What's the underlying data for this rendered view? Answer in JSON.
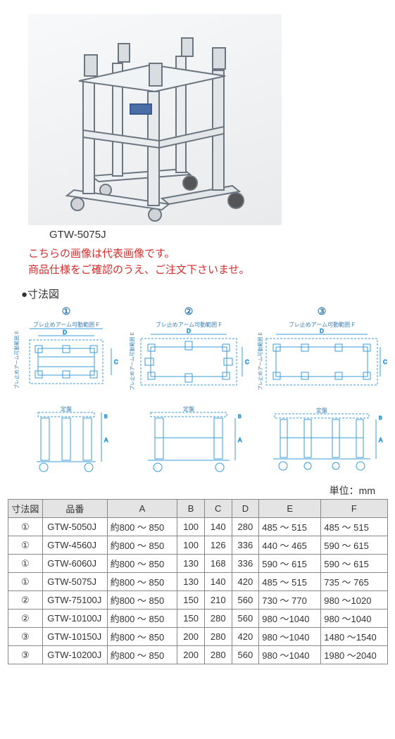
{
  "model_label": "GTW-5075J",
  "notice_line1": "こちらの画像は代表画像です。",
  "notice_line2": "商品仕様をご確認のうえ、ご注文下さいませ。",
  "notice_color": "#d62c2c",
  "section_label": "●寸法図",
  "diagram": {
    "num1": "①",
    "num2": "②",
    "num3": "③",
    "arm_label": "ブレ止めアーム可動範囲 F",
    "arm_label_vert": "ブレ止めアーム可動範囲 E",
    "surface_plate_label": "定盤",
    "stroke_color": "#3a9bd8",
    "text_color": "#3a7fb5"
  },
  "unit_label": "単位：mm",
  "table": {
    "headers": [
      "寸法図",
      "品番",
      "A",
      "B",
      "C",
      "D",
      "E",
      "F"
    ],
    "rows": [
      [
        "①",
        "GTW-5050J",
        "約800 ～ 850",
        "100",
        "140",
        "280",
        "485 ～ 515",
        "485 ～ 515"
      ],
      [
        "①",
        "GTW-4560J",
        "約800 ～ 850",
        "100",
        "126",
        "336",
        "440 ～ 465",
        "590 ～ 615"
      ],
      [
        "①",
        "GTW-6060J",
        "約800 ～ 850",
        "130",
        "168",
        "336",
        "590 ～ 615",
        "590 ～ 615"
      ],
      [
        "①",
        "GTW-5075J",
        "約800 ～ 850",
        "130",
        "140",
        "420",
        "485 ～ 515",
        "735 ～ 765"
      ],
      [
        "②",
        "GTW-75100J",
        "約800 ～ 850",
        "150",
        "210",
        "560",
        "730 ～ 770",
        "980 ～1020"
      ],
      [
        "②",
        "GTW-10100J",
        "約800 ～ 850",
        "150",
        "280",
        "560",
        "980 ～1040",
        "980 ～1040"
      ],
      [
        "③",
        "GTW-10150J",
        "約800 ～ 850",
        "200",
        "280",
        "420",
        "980 ～1040",
        "1480 ～1540"
      ],
      [
        "③",
        "GTW-10200J",
        "約800 ～ 850",
        "200",
        "280",
        "560",
        "980 ～1040",
        "1980 ～2040"
      ]
    ],
    "col_widths": [
      "50px",
      "92px",
      "102px",
      "40px",
      "40px",
      "40px",
      "90px",
      "96px"
    ]
  }
}
